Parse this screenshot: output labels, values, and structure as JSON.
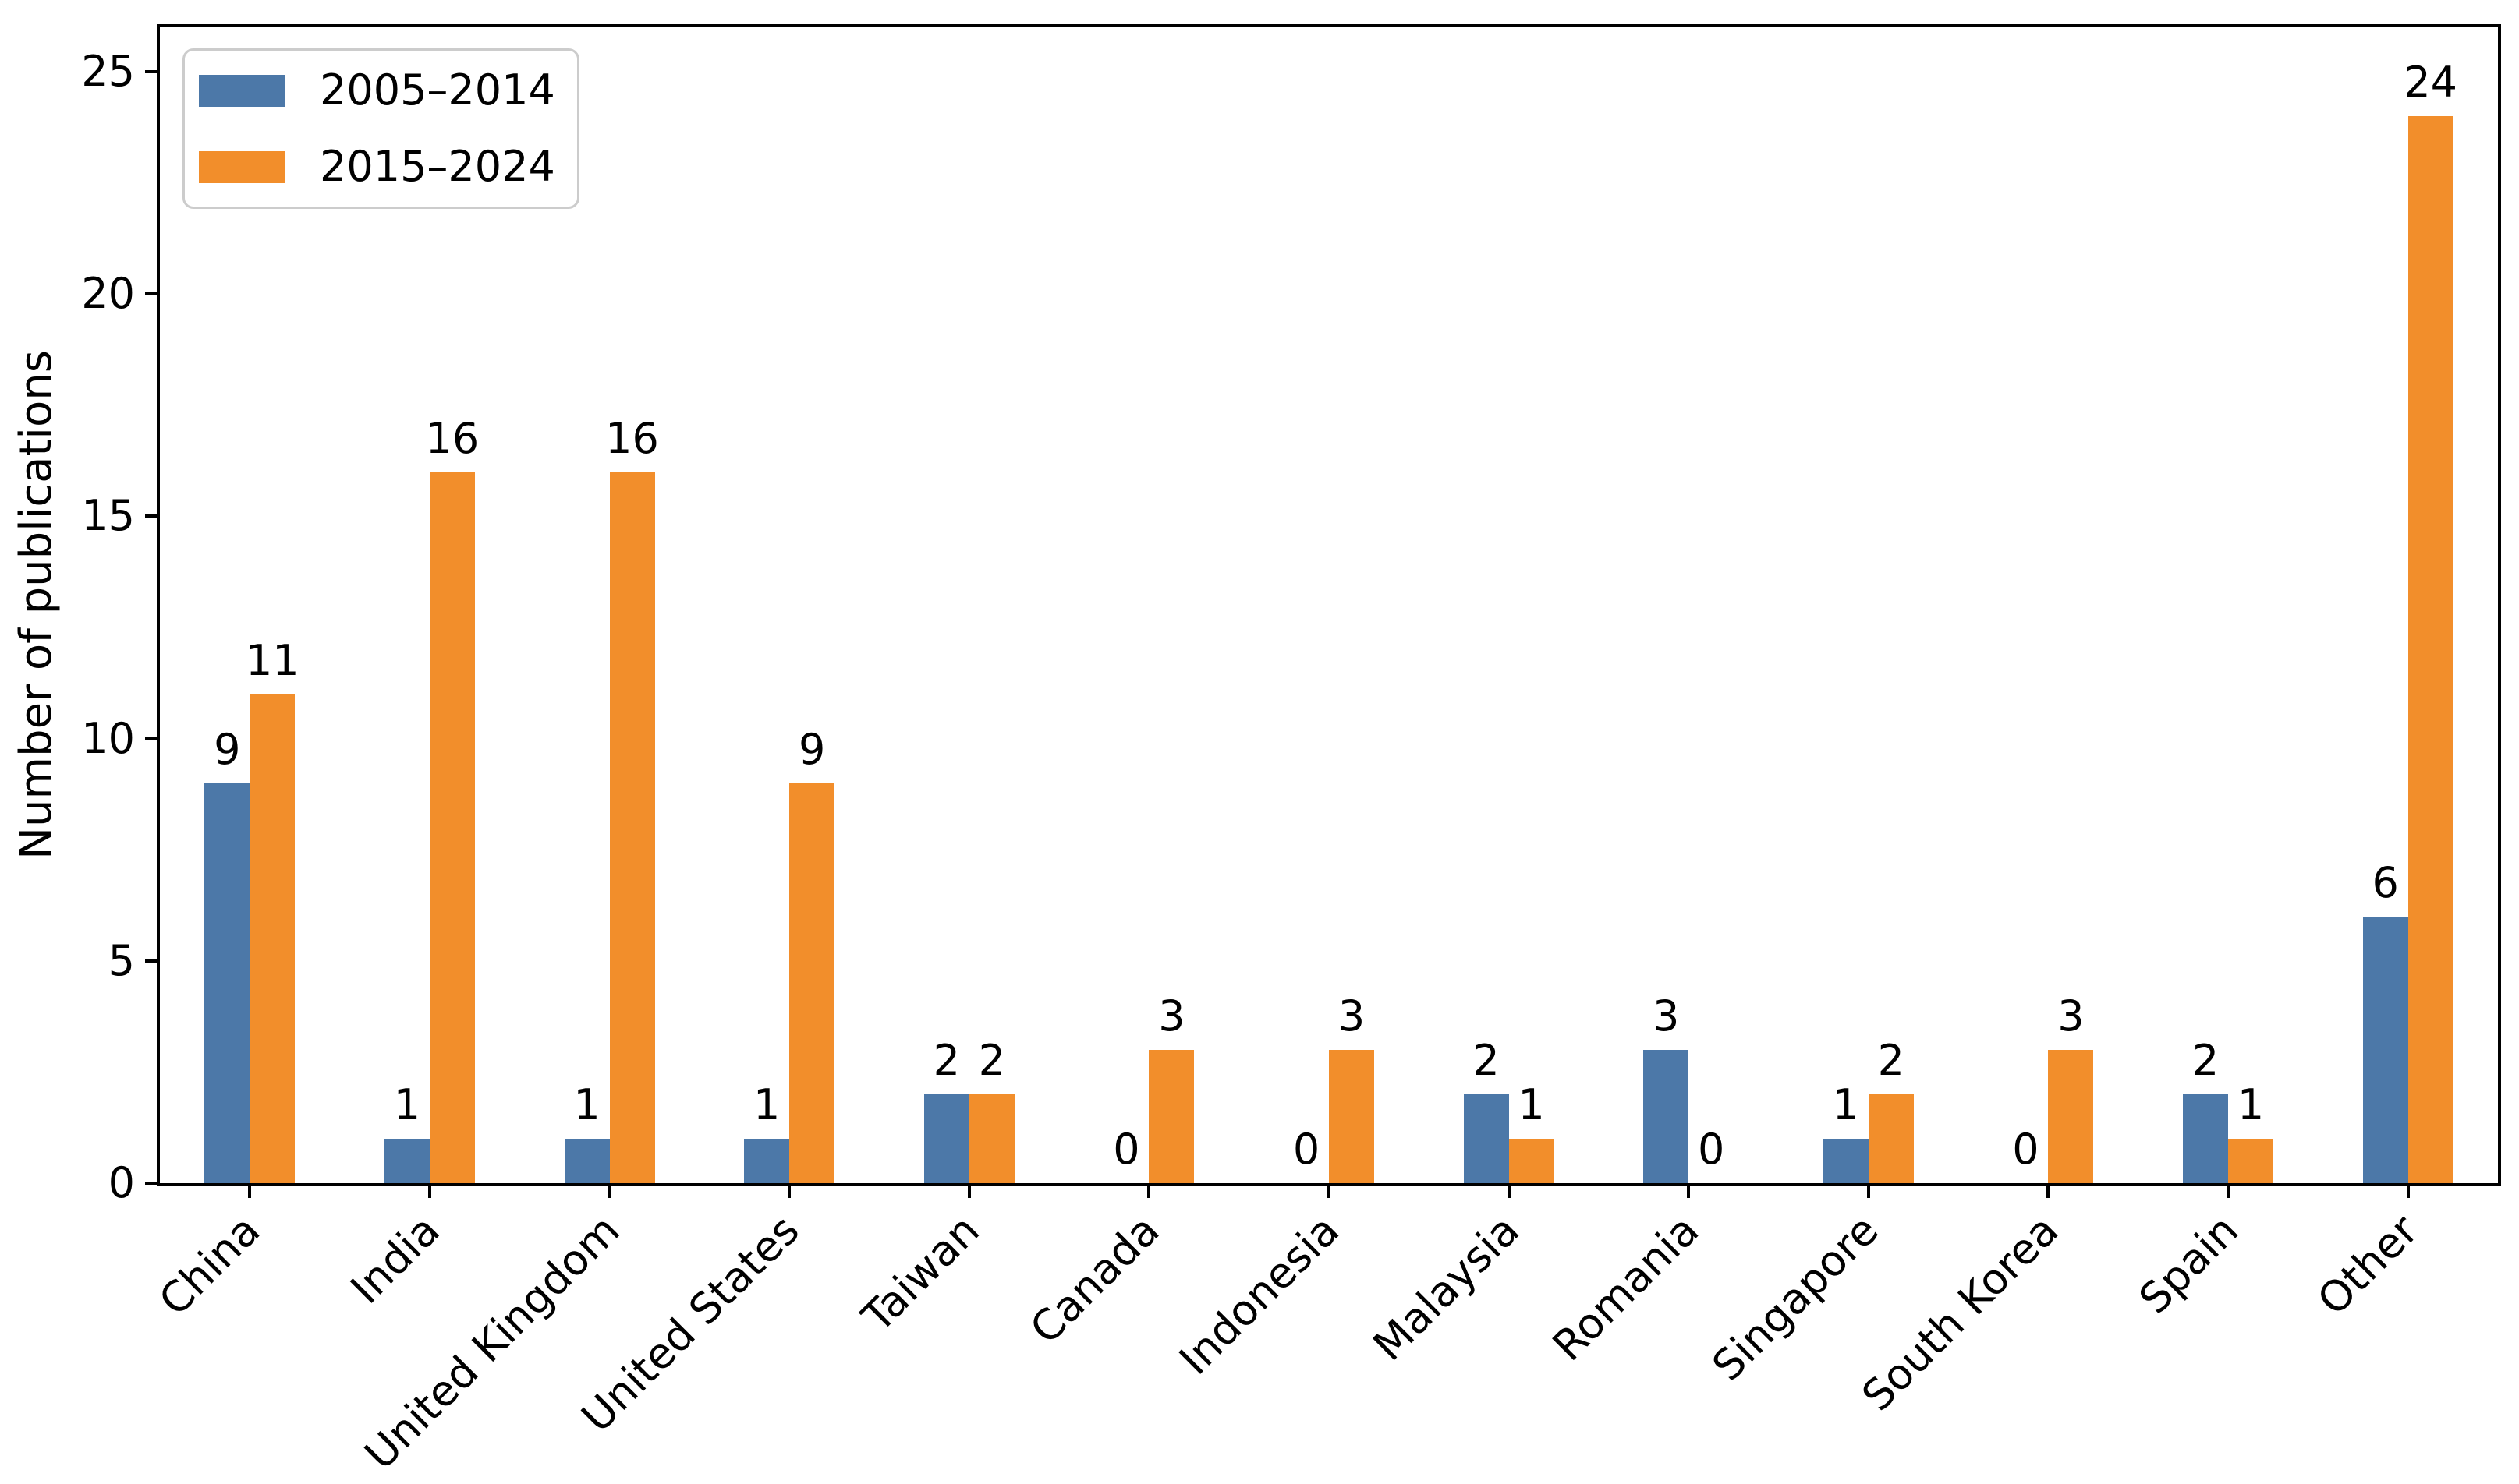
{
  "figure": {
    "background": "#ffffff",
    "spine_color": "#000000",
    "text_color": "#000000",
    "legend_border_color": "#cccccc"
  },
  "chart_data": {
    "type": "bar",
    "title": "",
    "xlabel": "",
    "ylabel": "Number of publications",
    "grid": false,
    "legend_position": "upper-left",
    "bar_value_labels": true,
    "ylim": [
      0,
      26
    ],
    "yticks": [
      0,
      5,
      10,
      15,
      20,
      25
    ],
    "categories": [
      "China",
      "India",
      "United Kingdom",
      "United States",
      "Taiwan",
      "Canada",
      "Indonesia",
      "Malaysia",
      "Romania",
      "Singapore",
      "South Korea",
      "Spain",
      "Other"
    ],
    "series": [
      {
        "name": "2005–2014",
        "color": "#4C78A8",
        "values": [
          9,
          1,
          1,
          1,
          2,
          0,
          0,
          2,
          3,
          1,
          0,
          2,
          6
        ]
      },
      {
        "name": "2015–2024",
        "color": "#F28E2B",
        "values": [
          11,
          16,
          16,
          9,
          2,
          3,
          3,
          1,
          0,
          2,
          3,
          1,
          24
        ]
      }
    ]
  }
}
